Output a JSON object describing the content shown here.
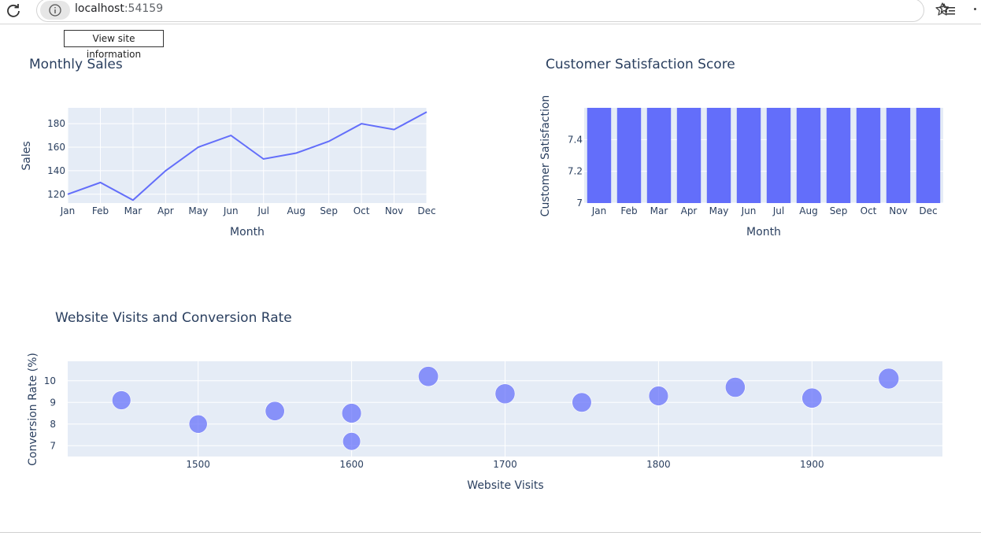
{
  "browser": {
    "url_host": "localhost",
    "url_port": ":54159",
    "tooltip": "View site information"
  },
  "chart_data": [
    {
      "type": "line",
      "title": "Monthly Sales",
      "xlabel": "Month",
      "ylabel": "Sales",
      "categories": [
        "Jan",
        "Feb",
        "Mar",
        "Apr",
        "May",
        "Jun",
        "Jul",
        "Aug",
        "Sep",
        "Oct",
        "Nov",
        "Dec"
      ],
      "values": [
        120,
        130,
        115,
        140,
        160,
        170,
        150,
        155,
        165,
        180,
        175,
        190
      ],
      "ylim": [
        112.5,
        193.5
      ],
      "yticks": [
        120,
        140,
        160,
        180
      ],
      "grid": true,
      "color": "#636efa",
      "plot_bg": "#e5ecf6"
    },
    {
      "type": "bar",
      "title": "Customer Satisfaction Score",
      "xlabel": "Month",
      "ylabel": "Customer Satisfaction",
      "categories": [
        "Jan",
        "Feb",
        "Mar",
        "Apr",
        "May",
        "Jun",
        "Jul",
        "Aug",
        "Sep",
        "Oct",
        "Nov",
        "Dec"
      ],
      "values": [
        7.6,
        7.6,
        7.6,
        7.6,
        7.6,
        7.6,
        7.6,
        7.6,
        7.6,
        7.6,
        7.6,
        7.6
      ],
      "ylim": [
        7,
        7.6
      ],
      "yticks": [
        7,
        7.2,
        7.4
      ],
      "ytick_labels": [
        "7",
        "7.2",
        "7.4"
      ],
      "grid": true,
      "color": "#636efa",
      "plot_bg": "#e5ecf6"
    },
    {
      "type": "scatter",
      "title": "Website Visits and Conversion Rate",
      "xlabel": "Website Visits",
      "ylabel": "Conversion Rate (%)",
      "x": [
        1450,
        1500,
        1550,
        1600,
        1600,
        1650,
        1700,
        1750,
        1800,
        1850,
        1900,
        1950
      ],
      "y": [
        9.1,
        8.0,
        8.6,
        8.5,
        7.2,
        10.2,
        9.4,
        9.0,
        9.3,
        9.7,
        9.2,
        10.1
      ],
      "size": [
        200,
        190,
        210,
        220,
        180,
        230,
        225,
        215,
        220,
        225,
        230,
        240
      ],
      "xlim": [
        1415,
        1985
      ],
      "ylim": [
        6.5,
        10.9
      ],
      "xticks": [
        1500,
        1600,
        1700,
        1800,
        1900
      ],
      "yticks": [
        7,
        8,
        9,
        10
      ],
      "grid": true,
      "color": "#636efa",
      "plot_bg": "#e5ecf6"
    }
  ]
}
